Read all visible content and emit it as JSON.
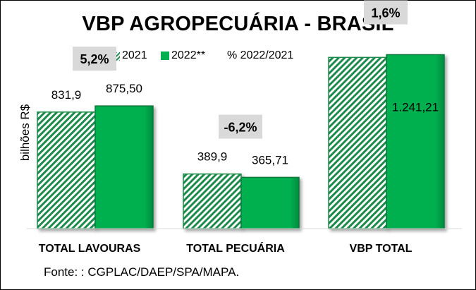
{
  "chart_data": {
    "type": "bar",
    "title": "VBP AGROPECUÁRIA - BRASIL",
    "ylabel": "bilhões R$",
    "categories": [
      "TOTAL LAVOURAS",
      "TOTAL PECUÁRIA",
      "VBP TOTAL"
    ],
    "series": [
      {
        "name": "2021",
        "values": [
          831.9,
          389.9,
          1221.8
        ],
        "labels": [
          "831,9",
          "389,9",
          ""
        ],
        "color": "#1f8a4c",
        "pattern": "diagonal-hatch"
      },
      {
        "name": "2022**",
        "values": [
          875.5,
          365.71,
          1241.21
        ],
        "labels": [
          "875,50",
          "365,71",
          "1.241,21"
        ],
        "color": "#00b050",
        "pattern": "solid"
      }
    ],
    "change_series": {
      "name": "% 2022/2021",
      "labels": [
        "5,2%",
        "-6,2%",
        "1,6%"
      ]
    },
    "ylim": [
      0,
      1430
    ],
    "grid": false,
    "legend": "top"
  },
  "source": "Fonte: : CGPLAC/DAEP/SPA/MAPA."
}
